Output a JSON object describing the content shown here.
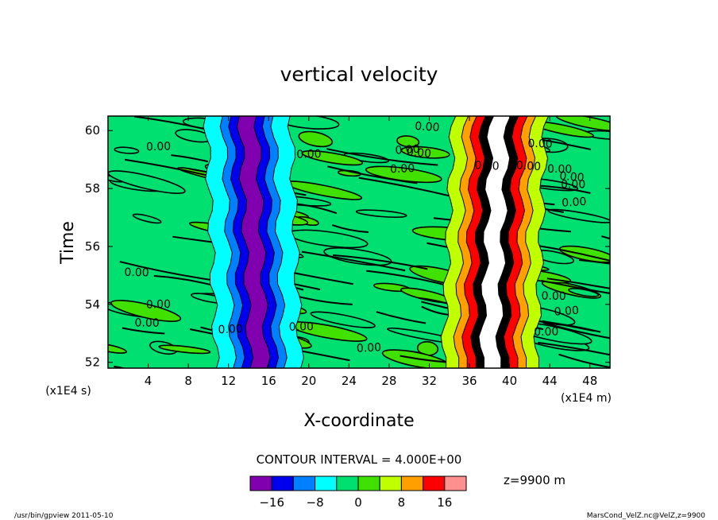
{
  "chart_data": {
    "type": "heatmap",
    "title": "vertical velocity",
    "xlabel": "X-coordinate",
    "ylabel": "Time",
    "x_unit": "(x1E4 m)",
    "y_unit": "(x1E4 s)",
    "xlim": [
      0,
      50
    ],
    "ylim": [
      51.8,
      60.5
    ],
    "xticks": [
      "4",
      "8",
      "12",
      "16",
      "20",
      "24",
      "28",
      "32",
      "36",
      "40",
      "44",
      "48"
    ],
    "yticks": [
      "52",
      "54",
      "56",
      "58",
      "60"
    ],
    "contour_interval_text": "CONTOUR INTERVAL = 4.000E+00",
    "level_text": "z=9900 m",
    "colorbar": {
      "colors": [
        "#8000b0",
        "#0000ee",
        "#0080ff",
        "#00ffff",
        "#00e070",
        "#40e000",
        "#c0ff00",
        "#ffa000",
        "#ff0000",
        "#ff9090"
      ],
      "tick_labels": [
        "−16",
        "−8",
        "0",
        "8",
        "16"
      ],
      "tick_values": [
        -16,
        -8,
        0,
        8,
        16
      ]
    },
    "contour_labels": [
      "0.00",
      "0.00",
      "0.00",
      "0.00",
      "0.00",
      "0.00",
      "0.00",
      "0.00",
      "0.00",
      "0.00",
      "0.00",
      "0.00",
      "0.00",
      "0.00",
      "0.00",
      "0.00",
      "0.00",
      "0.00",
      "0.00",
      "0.00",
      "0.00",
      "0.00"
    ],
    "features": [
      {
        "kind": "downdraft band",
        "x_start": 15,
        "x_end": 14,
        "time_range": [
          51.8,
          60.5
        ]
      },
      {
        "kind": "updraft band",
        "x_start": 38,
        "x_end": 39,
        "time_range": [
          51.8,
          60.5
        ]
      }
    ]
  },
  "footer": {
    "left": "/usr/bin/gpview  2011-05-10",
    "right": "MarsCond_VelZ.nc@VelZ,z=9900"
  }
}
